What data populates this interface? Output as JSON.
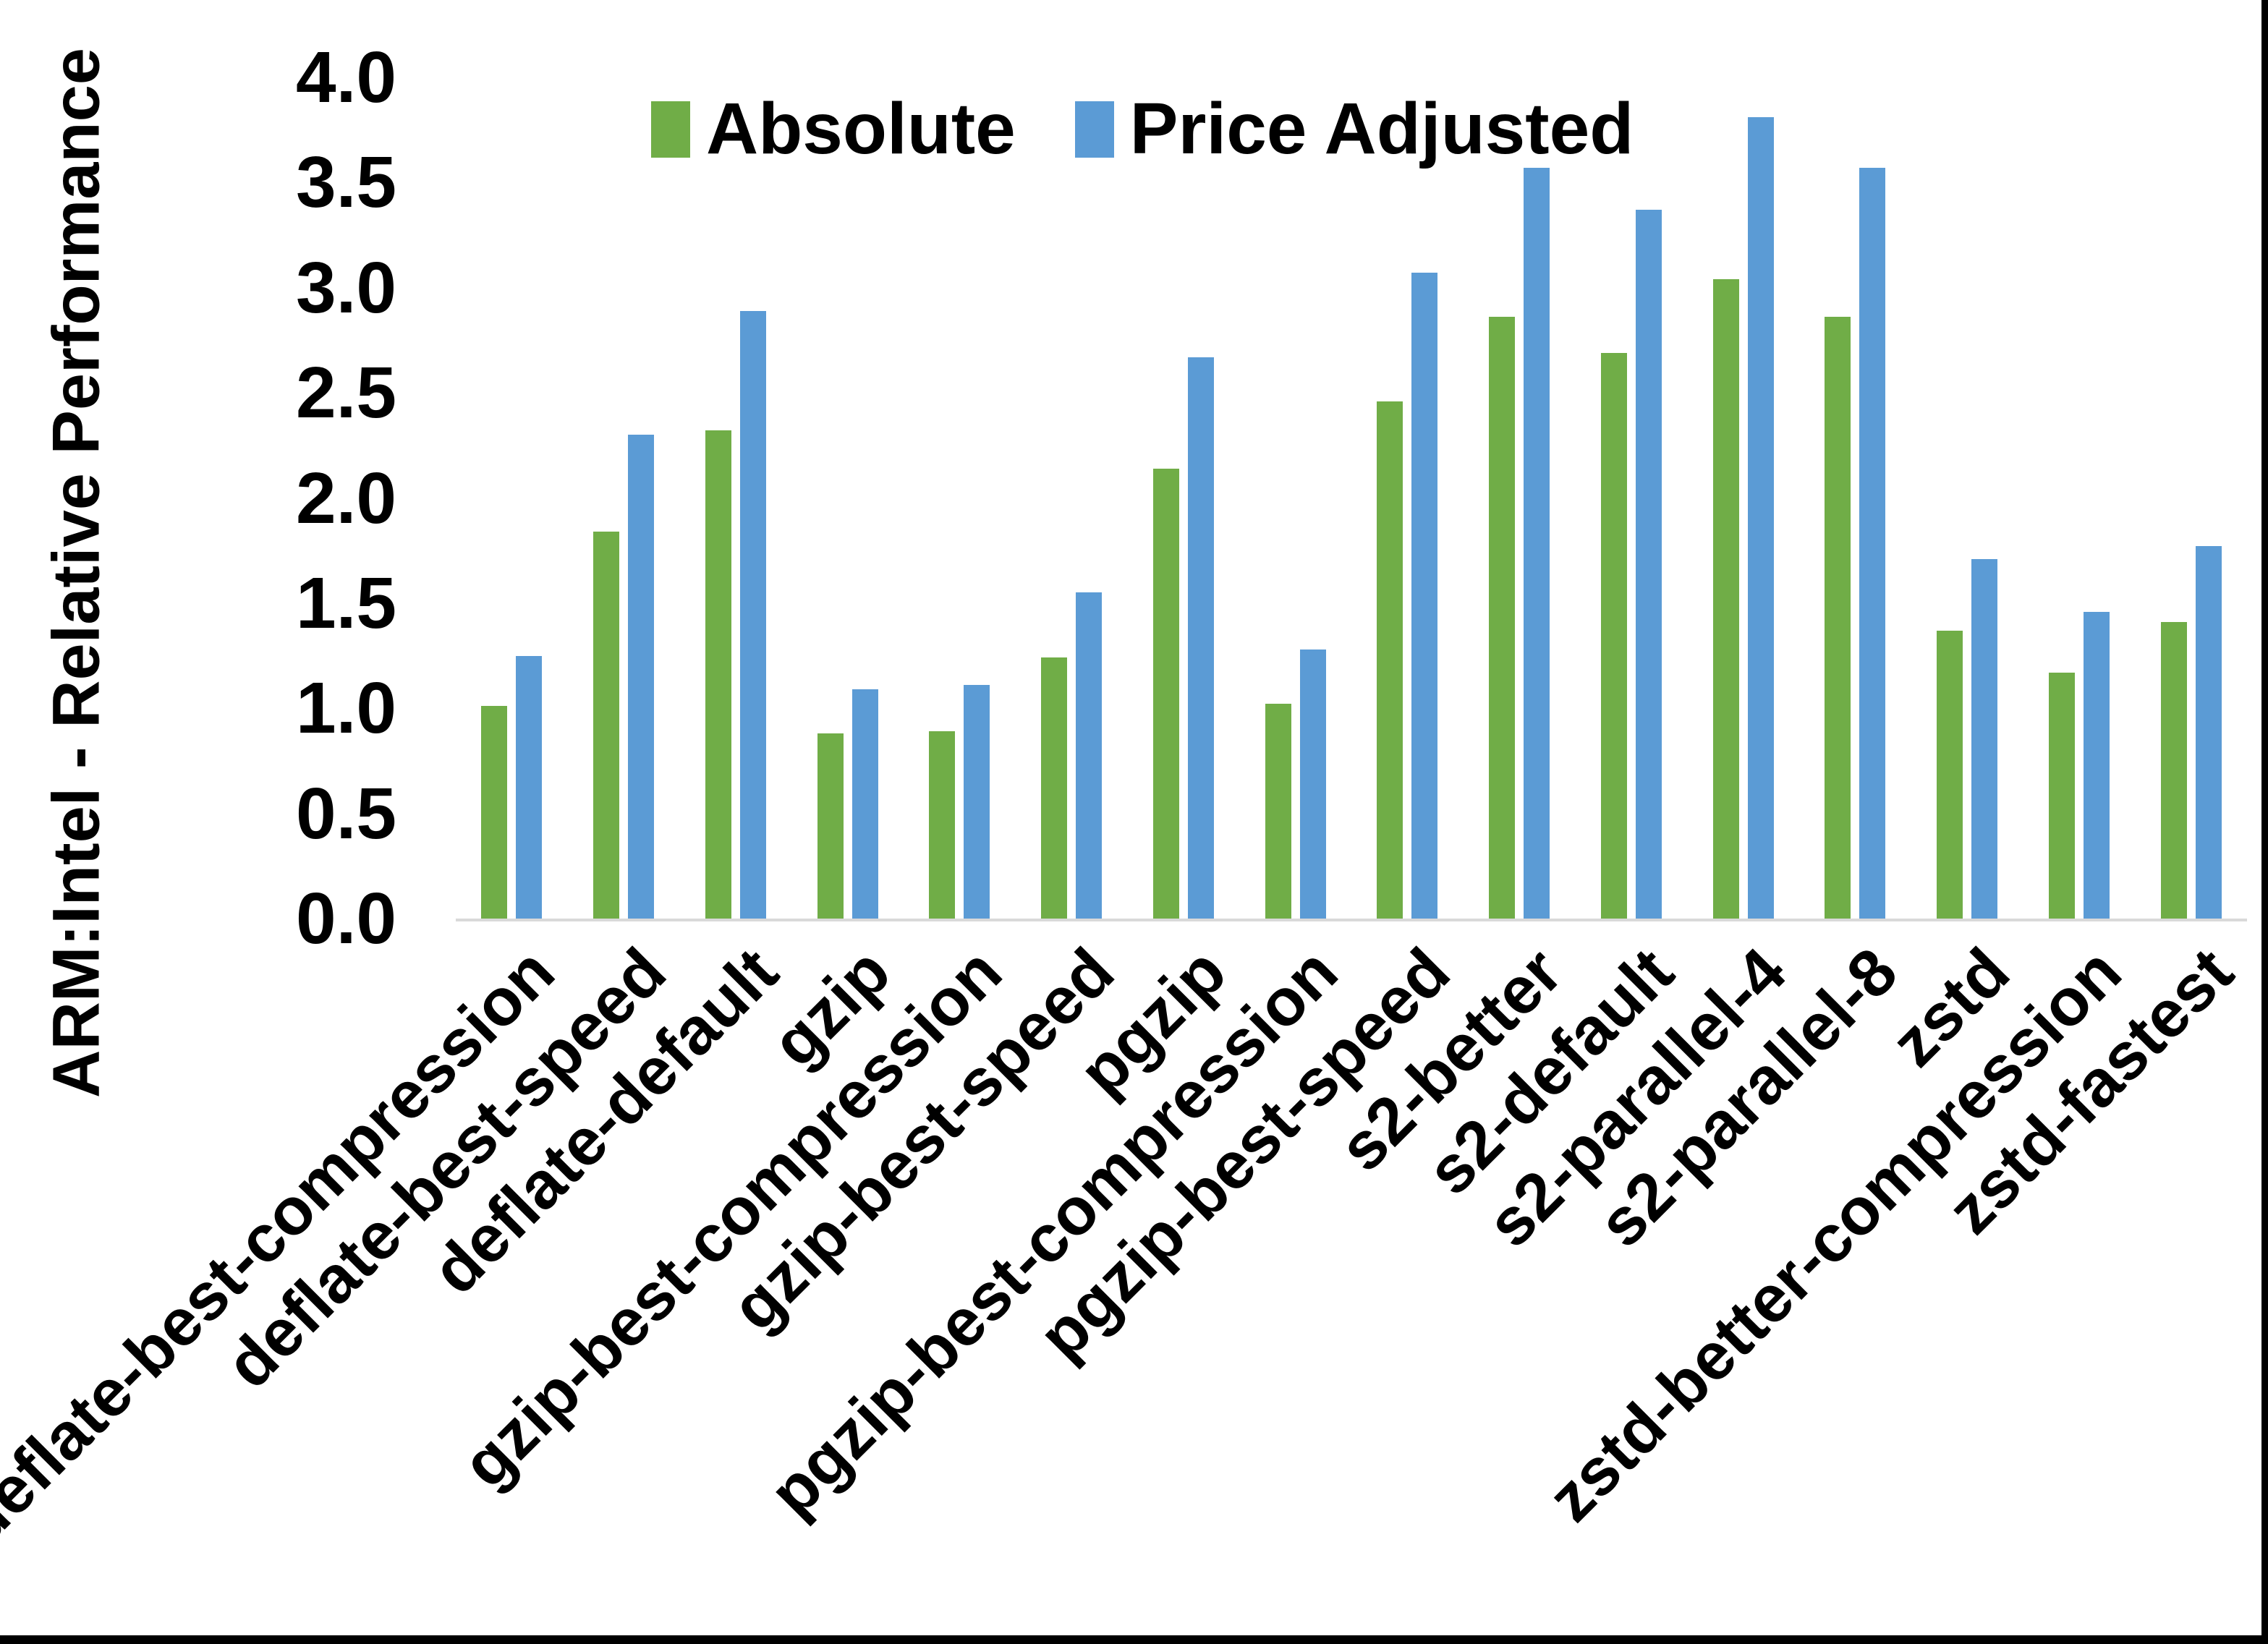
{
  "frame": {
    "right_border_color": "#000000",
    "bottom_border_color": "#000000",
    "background_color": "#FFFFFF"
  },
  "chart_data": {
    "type": "bar",
    "title": "",
    "xlabel": "",
    "ylabel": "ARM:Intel - Relative Performance",
    "ylim": [
      0,
      4.0
    ],
    "ytick_step": 0.5,
    "yticks": [
      "0.0",
      "0.5",
      "1.0",
      "1.5",
      "2.0",
      "2.5",
      "3.0",
      "3.5",
      "4.0"
    ],
    "grid": false,
    "legend_position": "top-center",
    "axis_line_color": "#D9D9D9",
    "categories": [
      "deflate-best-compression",
      "deflate-best-speed",
      "deflate-default",
      "gzip",
      "gzip-best-compression",
      "gzip-best-speed",
      "pgzip",
      "pgzip-best-compression",
      "pgzip-best-speed",
      "s2-better",
      "s2-default",
      "s2-parallel-4",
      "s2-parallel-8",
      "zstd",
      "zstd-better-compression",
      "zstd-fastest"
    ],
    "series": [
      {
        "name": "Absolute",
        "color": "#70AD47",
        "values": [
          1.01,
          1.84,
          2.32,
          0.88,
          0.89,
          1.24,
          2.14,
          1.02,
          2.46,
          2.86,
          2.69,
          3.04,
          2.86,
          1.37,
          1.17,
          1.41
        ]
      },
      {
        "name": "Price Adjusted",
        "color": "#5B9BD5",
        "values": [
          1.25,
          2.3,
          2.89,
          1.09,
          1.11,
          1.55,
          2.67,
          1.28,
          3.07,
          3.57,
          3.37,
          3.81,
          3.57,
          1.71,
          1.46,
          1.77
        ]
      }
    ]
  }
}
